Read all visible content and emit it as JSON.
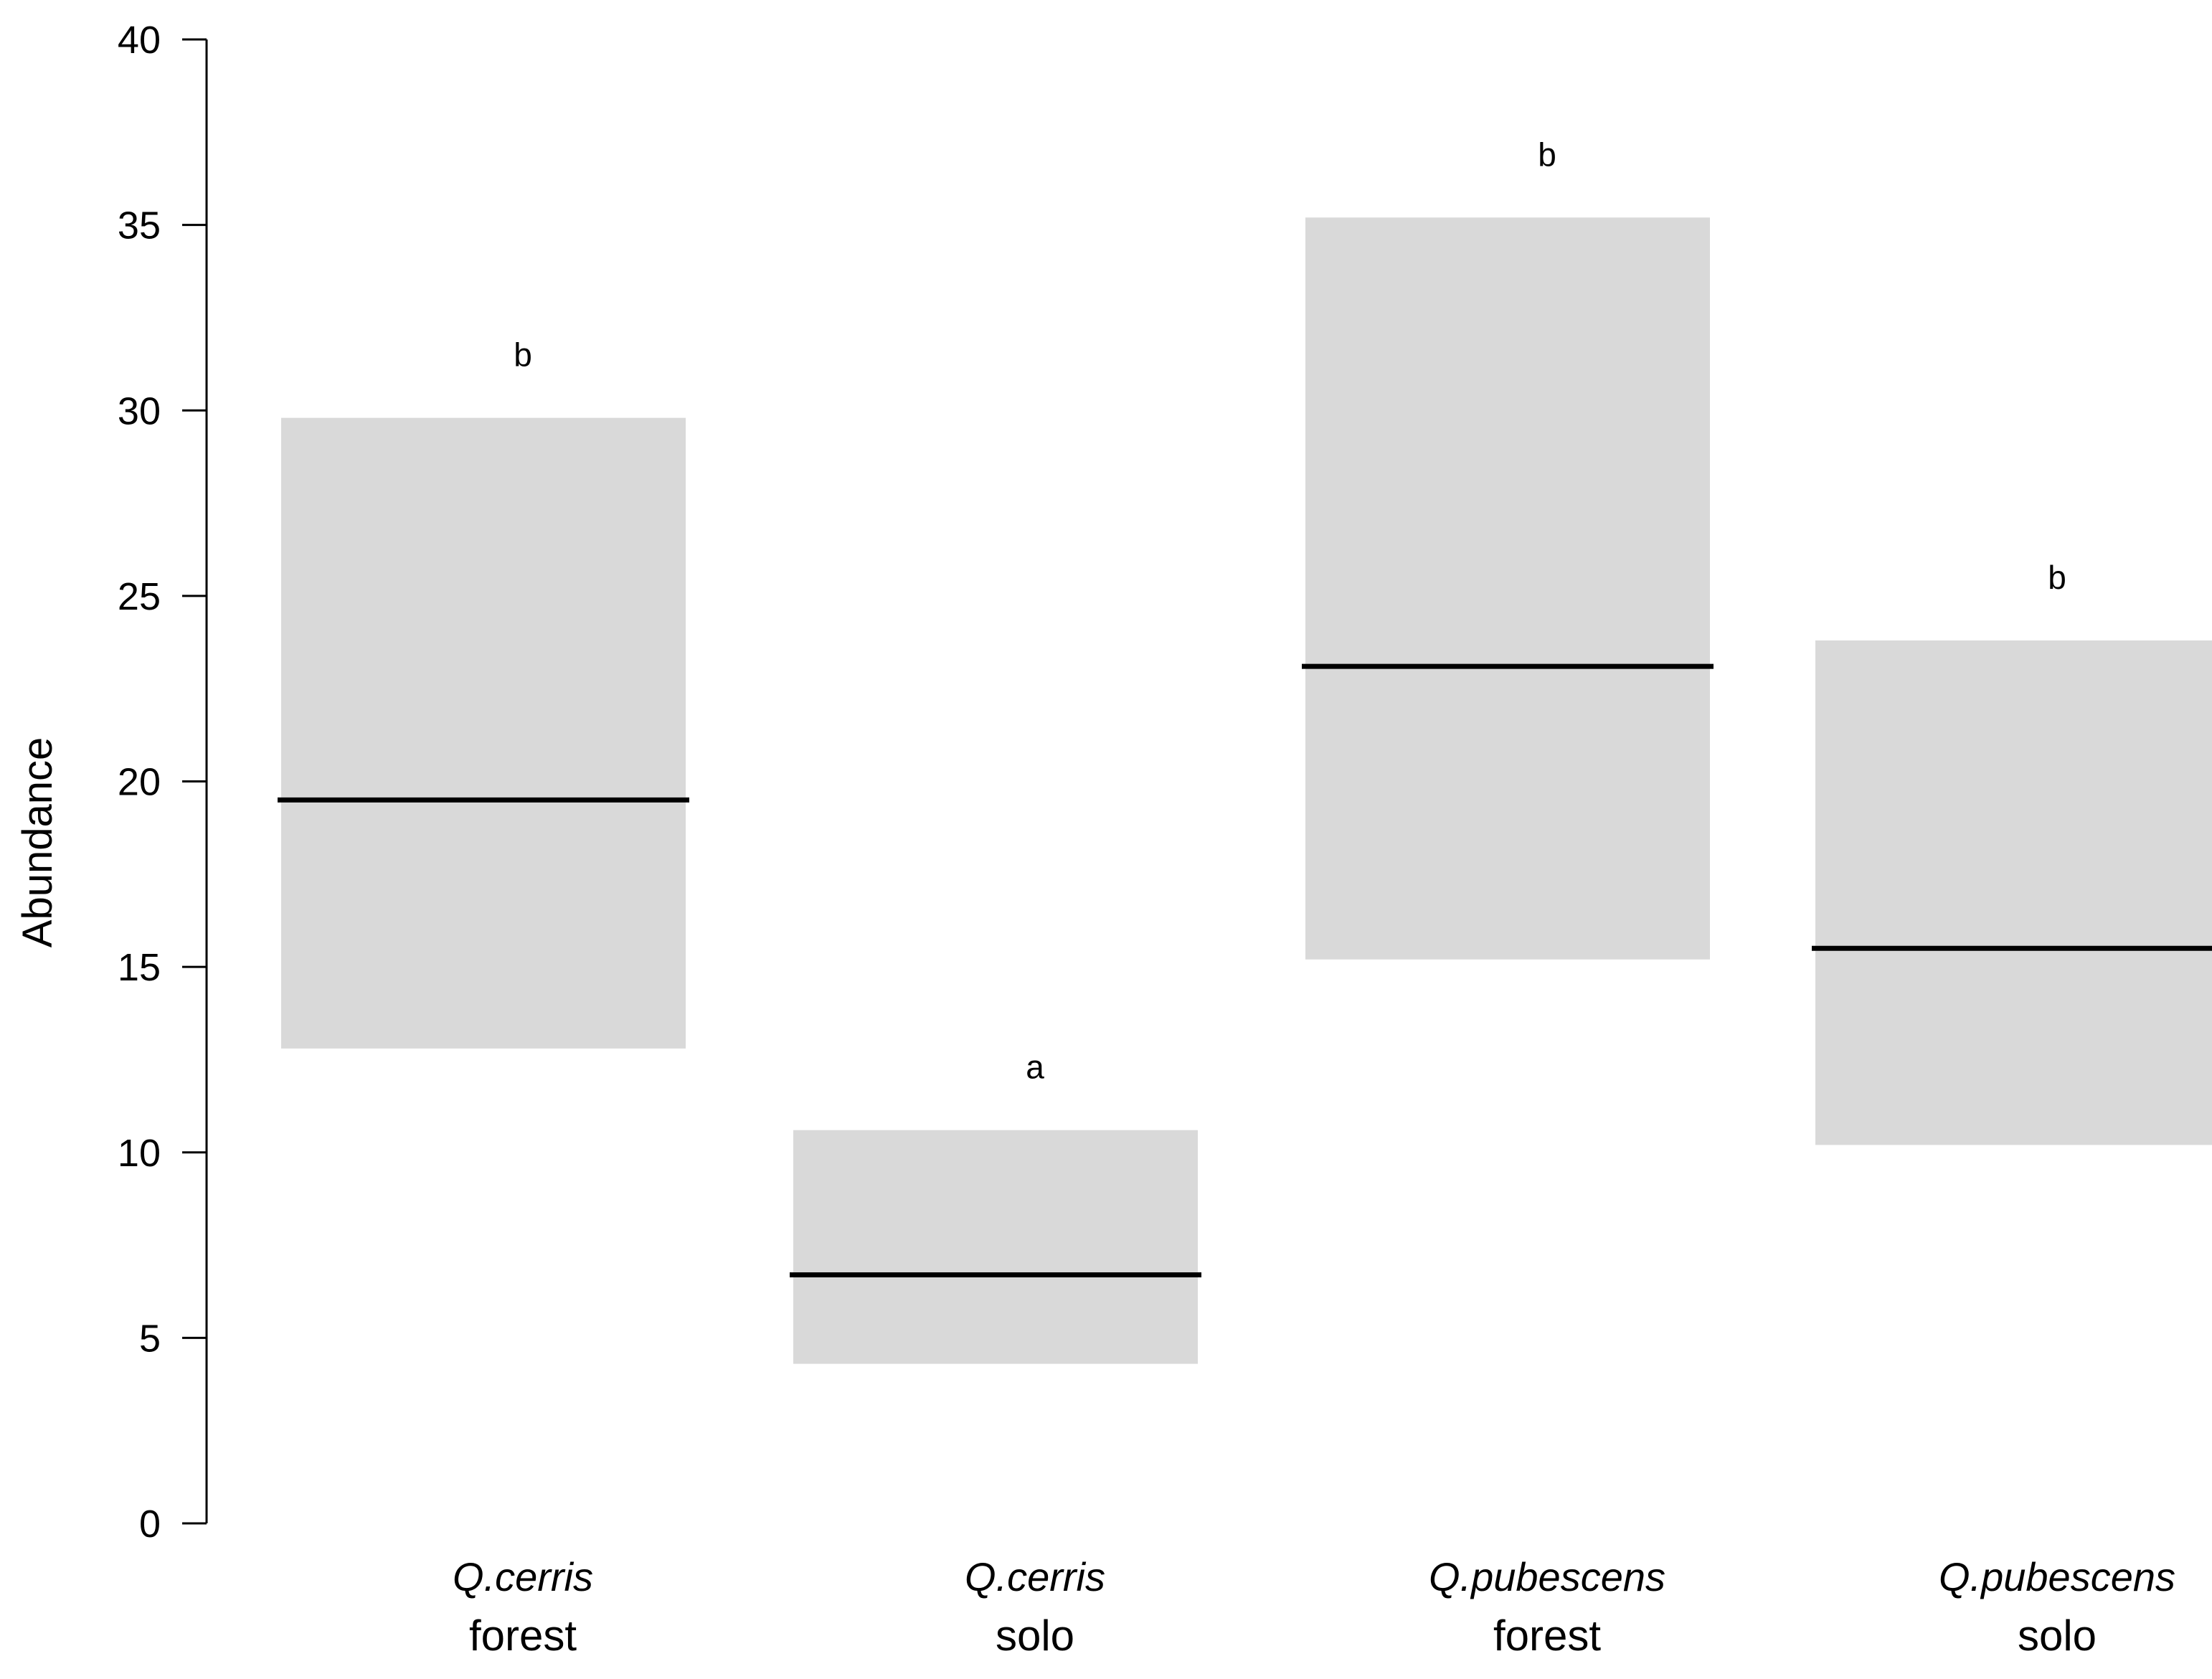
{
  "chart_data": {
    "type": "bar",
    "ylabel": "Abundance",
    "ylim": [
      0,
      40
    ],
    "yticks": [
      0,
      5,
      10,
      15,
      20,
      25,
      30,
      35,
      40
    ],
    "grid": false,
    "colors": {
      "box": "#d9d9d9",
      "line": "#000000"
    },
    "groups": [
      {
        "species": "Q.cerris",
        "habitat": "forest",
        "mean": 19.5,
        "lower": 12.8,
        "upper": 29.8,
        "letter": "b"
      },
      {
        "species": "Q.cerris",
        "habitat": "solo",
        "mean": 6.7,
        "lower": 4.3,
        "upper": 10.6,
        "letter": "a"
      },
      {
        "species": "Q.pubescens",
        "habitat": "forest",
        "mean": 23.1,
        "lower": 15.2,
        "upper": 35.2,
        "letter": "b"
      },
      {
        "species": "Q.pubescens",
        "habitat": "solo",
        "mean": 15.5,
        "lower": 10.2,
        "upper": 23.8,
        "letter": "b"
      }
    ]
  }
}
